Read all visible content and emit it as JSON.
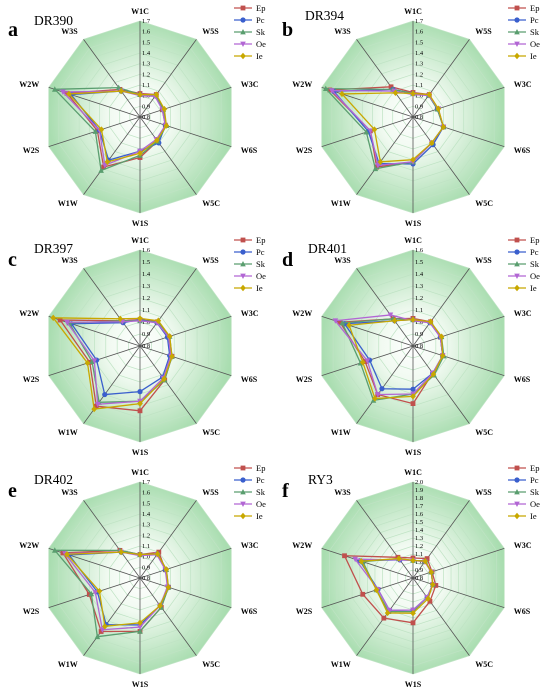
{
  "chart_data": [
    {
      "type": "radar",
      "panel": "a",
      "title": "DR390",
      "axes": [
        "W1C",
        "W5S",
        "W3C",
        "W6S",
        "W5C",
        "W1S",
        "W1W",
        "W2S",
        "W2W",
        "W3S"
      ],
      "rlim": [
        0.8,
        1.7
      ],
      "ticks": [
        "0.8",
        "0.9",
        "1.0",
        "1.1",
        "1.2",
        "1.3",
        "1.4",
        "1.5",
        "1.6",
        "1.7"
      ],
      "legend_position": "top-right",
      "grid": true,
      "series": [
        {
          "name": "Ep",
          "color": "#c0504d",
          "values": [
            1.02,
            1.06,
            1.02,
            1.05,
            1.08,
            1.18,
            1.38,
            1.22,
            1.52,
            1.12
          ]
        },
        {
          "name": "Pc",
          "color": "#3a5fcd",
          "values": [
            1.01,
            1.05,
            1.03,
            1.05,
            1.1,
            1.12,
            1.3,
            1.2,
            1.48,
            1.1
          ]
        },
        {
          "name": "Sk",
          "color": "#5a9e6f",
          "values": [
            1.01,
            1.05,
            1.03,
            1.06,
            1.08,
            1.16,
            1.42,
            1.24,
            1.64,
            1.14
          ]
        },
        {
          "name": "Oe",
          "color": "#b266d4",
          "values": [
            1.0,
            1.04,
            1.02,
            1.05,
            1.06,
            1.12,
            1.36,
            1.2,
            1.56,
            1.1
          ]
        },
        {
          "name": "Ie",
          "color": "#c8a800",
          "values": [
            1.01,
            1.06,
            1.04,
            1.06,
            1.07,
            1.14,
            1.32,
            1.18,
            1.5,
            1.1
          ]
        }
      ]
    },
    {
      "type": "radar",
      "panel": "b",
      "title": "DR394",
      "axes": [
        "W1C",
        "W5S",
        "W3C",
        "W6S",
        "W5C",
        "W1S",
        "W1W",
        "W2S",
        "W2W",
        "W3S"
      ],
      "rlim": [
        0.8,
        1.7
      ],
      "ticks": [
        "0.8",
        "0.9",
        "1.0",
        "1.1",
        "1.2",
        "1.3",
        "1.4",
        "1.5",
        "1.6",
        "1.7"
      ],
      "legend_position": "top-right",
      "grid": true,
      "series": [
        {
          "name": "Ep",
          "color": "#c0504d",
          "values": [
            1.03,
            1.06,
            1.04,
            1.1,
            1.1,
            1.22,
            1.38,
            1.22,
            1.62,
            1.15
          ]
        },
        {
          "name": "Pc",
          "color": "#3a5fcd",
          "values": [
            1.02,
            1.05,
            1.04,
            1.1,
            1.12,
            1.24,
            1.34,
            1.24,
            1.58,
            1.12
          ]
        },
        {
          "name": "Sk",
          "color": "#5a9e6f",
          "values": [
            1.02,
            1.05,
            1.04,
            1.1,
            1.1,
            1.22,
            1.4,
            1.26,
            1.66,
            1.12
          ]
        },
        {
          "name": "Oe",
          "color": "#b266d4",
          "values": [
            1.01,
            1.05,
            1.05,
            1.1,
            1.1,
            1.22,
            1.36,
            1.22,
            1.6,
            1.1
          ]
        },
        {
          "name": "Ie",
          "color": "#c8a800",
          "values": [
            1.02,
            1.06,
            1.05,
            1.1,
            1.1,
            1.2,
            1.32,
            1.18,
            1.5,
            1.08
          ]
        }
      ]
    },
    {
      "type": "radar",
      "panel": "c",
      "title": "DR397",
      "axes": [
        "W1C",
        "W5S",
        "W3C",
        "W6S",
        "W5C",
        "W1S",
        "W1W",
        "W2S",
        "W2W",
        "W3S"
      ],
      "rlim": [
        0.8,
        1.6
      ],
      "ticks": [
        "0.8",
        "0.9",
        "1.0",
        "1.1",
        "1.2",
        "1.3",
        "1.4",
        "1.5",
        "1.6"
      ],
      "legend_position": "top-right",
      "grid": true,
      "series": [
        {
          "name": "Ep",
          "color": "#c0504d",
          "values": [
            1.02,
            1.05,
            1.05,
            1.08,
            1.15,
            1.34,
            1.42,
            1.24,
            1.5,
            1.06
          ]
        },
        {
          "name": "Pc",
          "color": "#3a5fcd",
          "values": [
            1.02,
            1.04,
            1.04,
            1.06,
            1.12,
            1.18,
            1.3,
            1.18,
            1.4,
            1.04
          ]
        },
        {
          "name": "Sk",
          "color": "#5a9e6f",
          "values": [
            1.01,
            1.05,
            1.06,
            1.08,
            1.15,
            1.26,
            1.38,
            1.22,
            1.42,
            1.06
          ]
        },
        {
          "name": "Oe",
          "color": "#b266d4",
          "values": [
            1.01,
            1.04,
            1.05,
            1.07,
            1.13,
            1.26,
            1.4,
            1.2,
            1.44,
            1.05
          ]
        },
        {
          "name": "Ie",
          "color": "#c8a800",
          "values": [
            1.03,
            1.06,
            1.06,
            1.08,
            1.14,
            1.28,
            1.45,
            1.26,
            1.56,
            1.08
          ]
        }
      ]
    },
    {
      "type": "radar",
      "panel": "d",
      "title": "DR401",
      "axes": [
        "W1C",
        "W5S",
        "W3C",
        "W6S",
        "W5C",
        "W1S",
        "W1W",
        "W2S",
        "W2W",
        "W3S"
      ],
      "rlim": [
        0.8,
        1.6
      ],
      "ticks": [
        "0.8",
        "0.9",
        "1.0",
        "1.1",
        "1.2",
        "1.3",
        "1.4",
        "1.5",
        "1.6"
      ],
      "legend_position": "top-right",
      "grid": true,
      "series": [
        {
          "name": "Ep",
          "color": "#c0504d",
          "values": [
            1.03,
            1.05,
            1.04,
            1.06,
            1.08,
            1.28,
            1.3,
            1.22,
            1.44,
            1.08
          ]
        },
        {
          "name": "Pc",
          "color": "#3a5fcd",
          "values": [
            1.02,
            1.04,
            1.04,
            1.06,
            1.08,
            1.16,
            1.24,
            1.18,
            1.4,
            1.06
          ]
        },
        {
          "name": "Sk",
          "color": "#5a9e6f",
          "values": [
            1.02,
            1.05,
            1.05,
            1.07,
            1.1,
            1.2,
            1.36,
            1.26,
            1.42,
            1.08
          ]
        },
        {
          "name": "Oe",
          "color": "#b266d4",
          "values": [
            1.01,
            1.04,
            1.04,
            1.06,
            1.08,
            1.2,
            1.3,
            1.2,
            1.48,
            1.12
          ]
        },
        {
          "name": "Ie",
          "color": "#c8a800",
          "values": [
            1.02,
            1.05,
            1.05,
            1.06,
            1.09,
            1.22,
            1.34,
            1.24,
            1.36,
            1.06
          ]
        }
      ]
    },
    {
      "type": "radar",
      "panel": "e",
      "title": "DR402",
      "axes": [
        "W1C",
        "W5S",
        "W3C",
        "W6S",
        "W5C",
        "W1S",
        "W1W",
        "W2S",
        "W2W",
        "W3S"
      ],
      "rlim": [
        0.8,
        1.7
      ],
      "ticks": [
        "0.8",
        "0.9",
        "1.0",
        "1.1",
        "1.2",
        "1.3",
        "1.4",
        "1.5",
        "1.6",
        "1.7"
      ],
      "legend_position": "top-right",
      "grid": true,
      "series": [
        {
          "name": "Ep",
          "color": "#c0504d",
          "values": [
            1.02,
            1.1,
            1.05,
            1.08,
            1.14,
            1.3,
            1.42,
            1.3,
            1.56,
            1.12
          ]
        },
        {
          "name": "Pc",
          "color": "#3a5fcd",
          "values": [
            1.02,
            1.08,
            1.05,
            1.08,
            1.12,
            1.24,
            1.34,
            1.22,
            1.5,
            1.1
          ]
        },
        {
          "name": "Sk",
          "color": "#5a9e6f",
          "values": [
            1.02,
            1.08,
            1.06,
            1.08,
            1.14,
            1.3,
            1.48,
            1.28,
            1.64,
            1.12
          ]
        },
        {
          "name": "Oe",
          "color": "#b266d4",
          "values": [
            1.01,
            1.07,
            1.05,
            1.07,
            1.12,
            1.26,
            1.4,
            1.24,
            1.54,
            1.1
          ]
        },
        {
          "name": "Ie",
          "color": "#c8a800",
          "values": [
            1.02,
            1.08,
            1.06,
            1.08,
            1.12,
            1.22,
            1.36,
            1.2,
            1.52,
            1.1
          ]
        }
      ]
    },
    {
      "type": "radar",
      "panel": "f",
      "title": "RY3",
      "axes": [
        "W1C",
        "W5S",
        "W3C",
        "W6S",
        "W5C",
        "W1S",
        "W1W",
        "W2S",
        "W2W",
        "W3S"
      ],
      "rlim": [
        0.8,
        2.0
      ],
      "ticks": [
        "0.8",
        "0.9",
        "1.0",
        "1.1",
        "1.2",
        "1.3",
        "1.4",
        "1.5",
        "1.6",
        "1.7",
        "1.8",
        "1.9",
        "2.0"
      ],
      "legend_position": "top-right",
      "grid": true,
      "series": [
        {
          "name": "Ep",
          "color": "#c0504d",
          "values": [
            1.05,
            1.1,
            1.05,
            1.1,
            1.16,
            1.36,
            1.42,
            1.46,
            1.7,
            1.12
          ]
        },
        {
          "name": "Pc",
          "color": "#3a5fcd",
          "values": [
            1.02,
            1.06,
            1.04,
            1.06,
            1.1,
            1.2,
            1.3,
            1.26,
            1.5,
            1.08
          ]
        },
        {
          "name": "Sk",
          "color": "#5a9e6f",
          "values": [
            1.02,
            1.06,
            1.04,
            1.06,
            1.1,
            1.22,
            1.32,
            1.28,
            1.46,
            1.1
          ]
        },
        {
          "name": "Oe",
          "color": "#b266d4",
          "values": [
            1.02,
            1.05,
            1.04,
            1.06,
            1.1,
            1.2,
            1.3,
            1.26,
            1.56,
            1.08
          ]
        },
        {
          "name": "Ie",
          "color": "#c8a800",
          "values": [
            1.02,
            1.06,
            1.04,
            1.06,
            1.12,
            1.24,
            1.34,
            1.28,
            1.48,
            1.1
          ]
        }
      ]
    }
  ]
}
